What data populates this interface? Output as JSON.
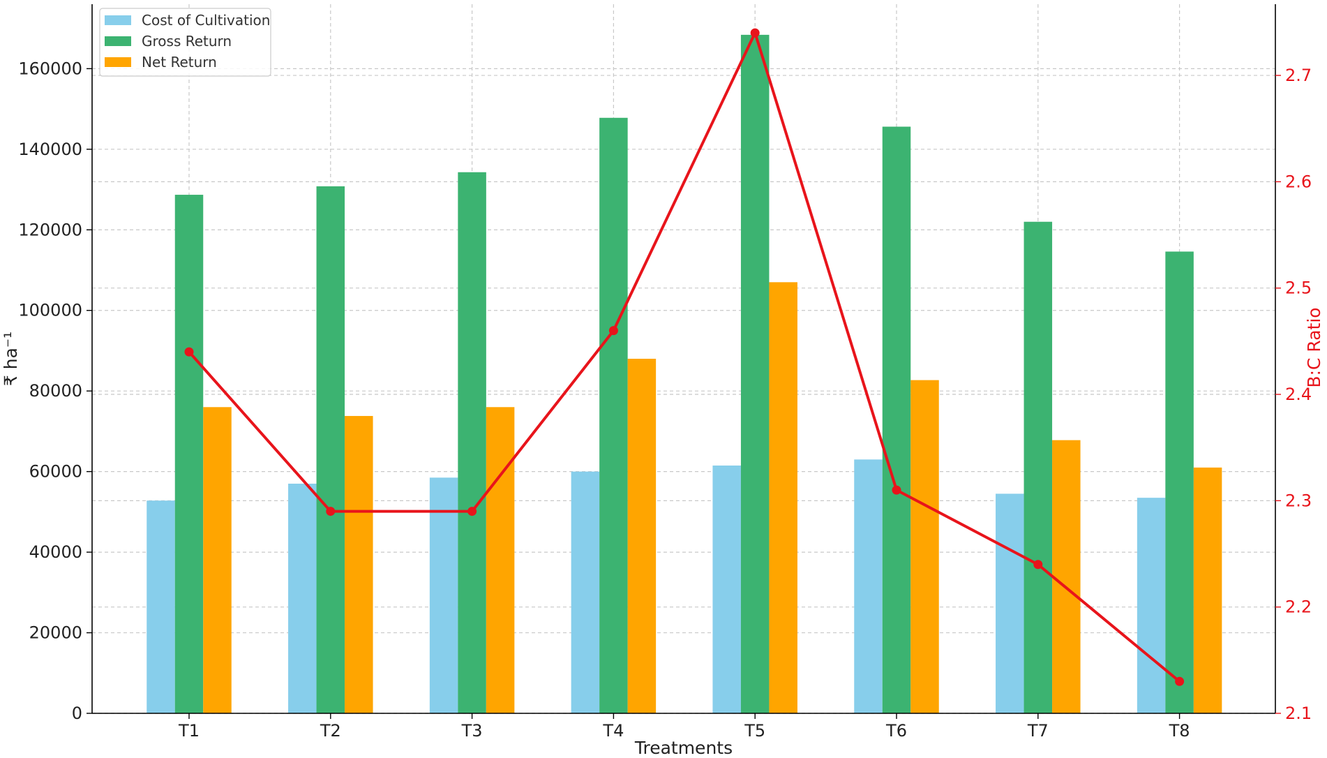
{
  "chart_data": {
    "type": "bar",
    "title": "",
    "xlabel": "Treatments",
    "ylabel": "₹ ha⁻¹",
    "y2label": "B:C Ratio",
    "categories": [
      "T1",
      "T2",
      "T3",
      "T4",
      "T5",
      "T6",
      "T7",
      "T8"
    ],
    "series": [
      {
        "name": "Cost of Cultivation",
        "color": "#87ceeb",
        "values": [
          52800,
          57000,
          58500,
          60000,
          61500,
          63000,
          54500,
          53500
        ]
      },
      {
        "name": "Gross Return",
        "color": "#3cb371",
        "values": [
          128700,
          130800,
          134300,
          147800,
          168400,
          145600,
          122000,
          114600
        ]
      },
      {
        "name": "Net Return",
        "color": "#ffa500",
        "values": [
          76000,
          73800,
          76000,
          88000,
          107000,
          82700,
          67800,
          61000
        ]
      }
    ],
    "line_series": {
      "name": "B:C Ratio",
      "color": "#e8141b",
      "axis": "right",
      "values": [
        2.44,
        2.29,
        2.29,
        2.46,
        2.74,
        2.31,
        2.24,
        2.13
      ]
    },
    "ylim": [
      0,
      176000
    ],
    "y_ticks": [
      0,
      20000,
      40000,
      60000,
      80000,
      100000,
      120000,
      140000,
      160000
    ],
    "y2lim": [
      2.1,
      2.767
    ],
    "y2_ticks": [
      "2.1",
      "2.2",
      "2.3",
      "2.4",
      "2.5",
      "2.6",
      "2.7"
    ],
    "grid": true,
    "legend_position": "top-left"
  }
}
